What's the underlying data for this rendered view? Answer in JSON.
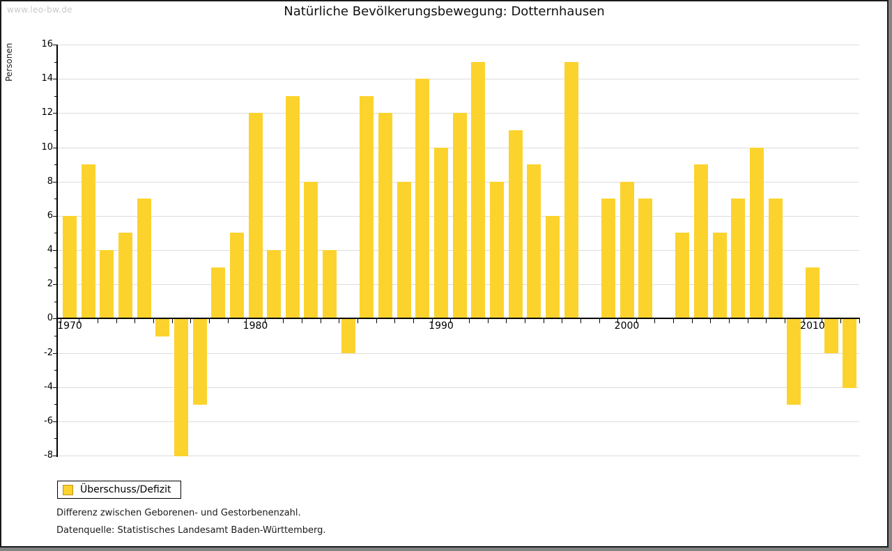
{
  "page": {
    "watermark": "www.leo-bw.de",
    "footer_line1": "Differenz zwischen Geborenen- und Gestorbenenzahl.",
    "footer_line2": "Datenquelle: Statistisches Landesamt Baden-Württemberg."
  },
  "legend": {
    "label": "Überschuss/Defizit"
  },
  "colors": {
    "bar": "#FCD32D",
    "bar_swatch_border": "#BE8F20",
    "grid": "#DCDCDC",
    "axis": "#000000",
    "watermark_text": "#C9C9C9",
    "frame_shadow": "#848484"
  },
  "chart_data": {
    "type": "bar",
    "title": "Natürliche Bevölkerungsbewegung: Dotternhausen",
    "xlabel": "",
    "ylabel": "Personen",
    "series_name": "Überschuss/Defizit",
    "x": [
      1970,
      1971,
      1972,
      1973,
      1974,
      1975,
      1976,
      1977,
      1978,
      1979,
      1980,
      1981,
      1982,
      1983,
      1984,
      1985,
      1986,
      1987,
      1988,
      1989,
      1990,
      1991,
      1992,
      1993,
      1994,
      1995,
      1996,
      1997,
      1998,
      1999,
      2000,
      2001,
      2002,
      2003,
      2004,
      2005,
      2006,
      2007,
      2008,
      2009,
      2010,
      2011,
      2012
    ],
    "values": [
      6,
      9,
      4,
      5,
      7,
      -1,
      -8,
      -5,
      3,
      5,
      12,
      4,
      13,
      8,
      4,
      -2,
      13,
      12,
      8,
      14,
      10,
      12,
      15,
      8,
      11,
      9,
      6,
      15,
      0,
      7,
      8,
      7,
      0,
      5,
      9,
      5,
      7,
      10,
      7,
      -5,
      3,
      -2,
      -4
    ],
    "ylim": [
      -8,
      16
    ],
    "ytick_step": 2,
    "ytick_labels": [
      16,
      14,
      12,
      10,
      8,
      6,
      4,
      2,
      0,
      -2,
      -4,
      -6,
      -8
    ],
    "xtick_labels": [
      1970,
      1980,
      1990,
      2000,
      2010
    ],
    "grid": true,
    "legend_position": "bottom-left",
    "bar_color": "#FCD32D"
  }
}
